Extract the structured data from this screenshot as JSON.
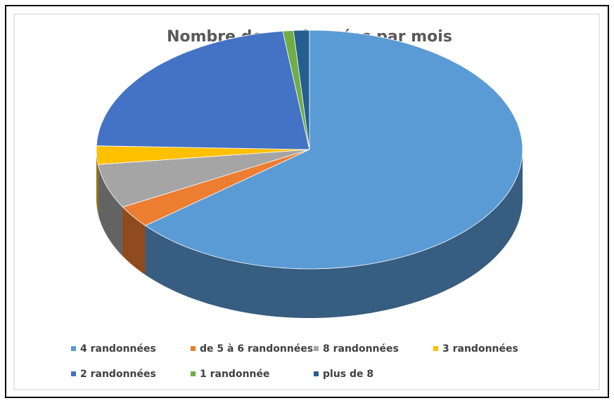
{
  "chart_data": {
    "type": "pie3d",
    "title": "Nombre de randonnées par mois",
    "categories": [
      "4 randonnées",
      "de 5 à 6 randonnées",
      "8 randonnées",
      "3 randonnées",
      "2 randonnées",
      "1 randonnée",
      "plus de 8"
    ],
    "values": [
      64,
      3,
      6,
      2.5,
      22.5,
      0.8,
      1.2
    ],
    "colors": [
      "#5b9bd5",
      "#ed7d31",
      "#a5a5a5",
      "#ffc000",
      "#4472c4",
      "#70ad47",
      "#255e91"
    ],
    "legend": "bottom"
  }
}
